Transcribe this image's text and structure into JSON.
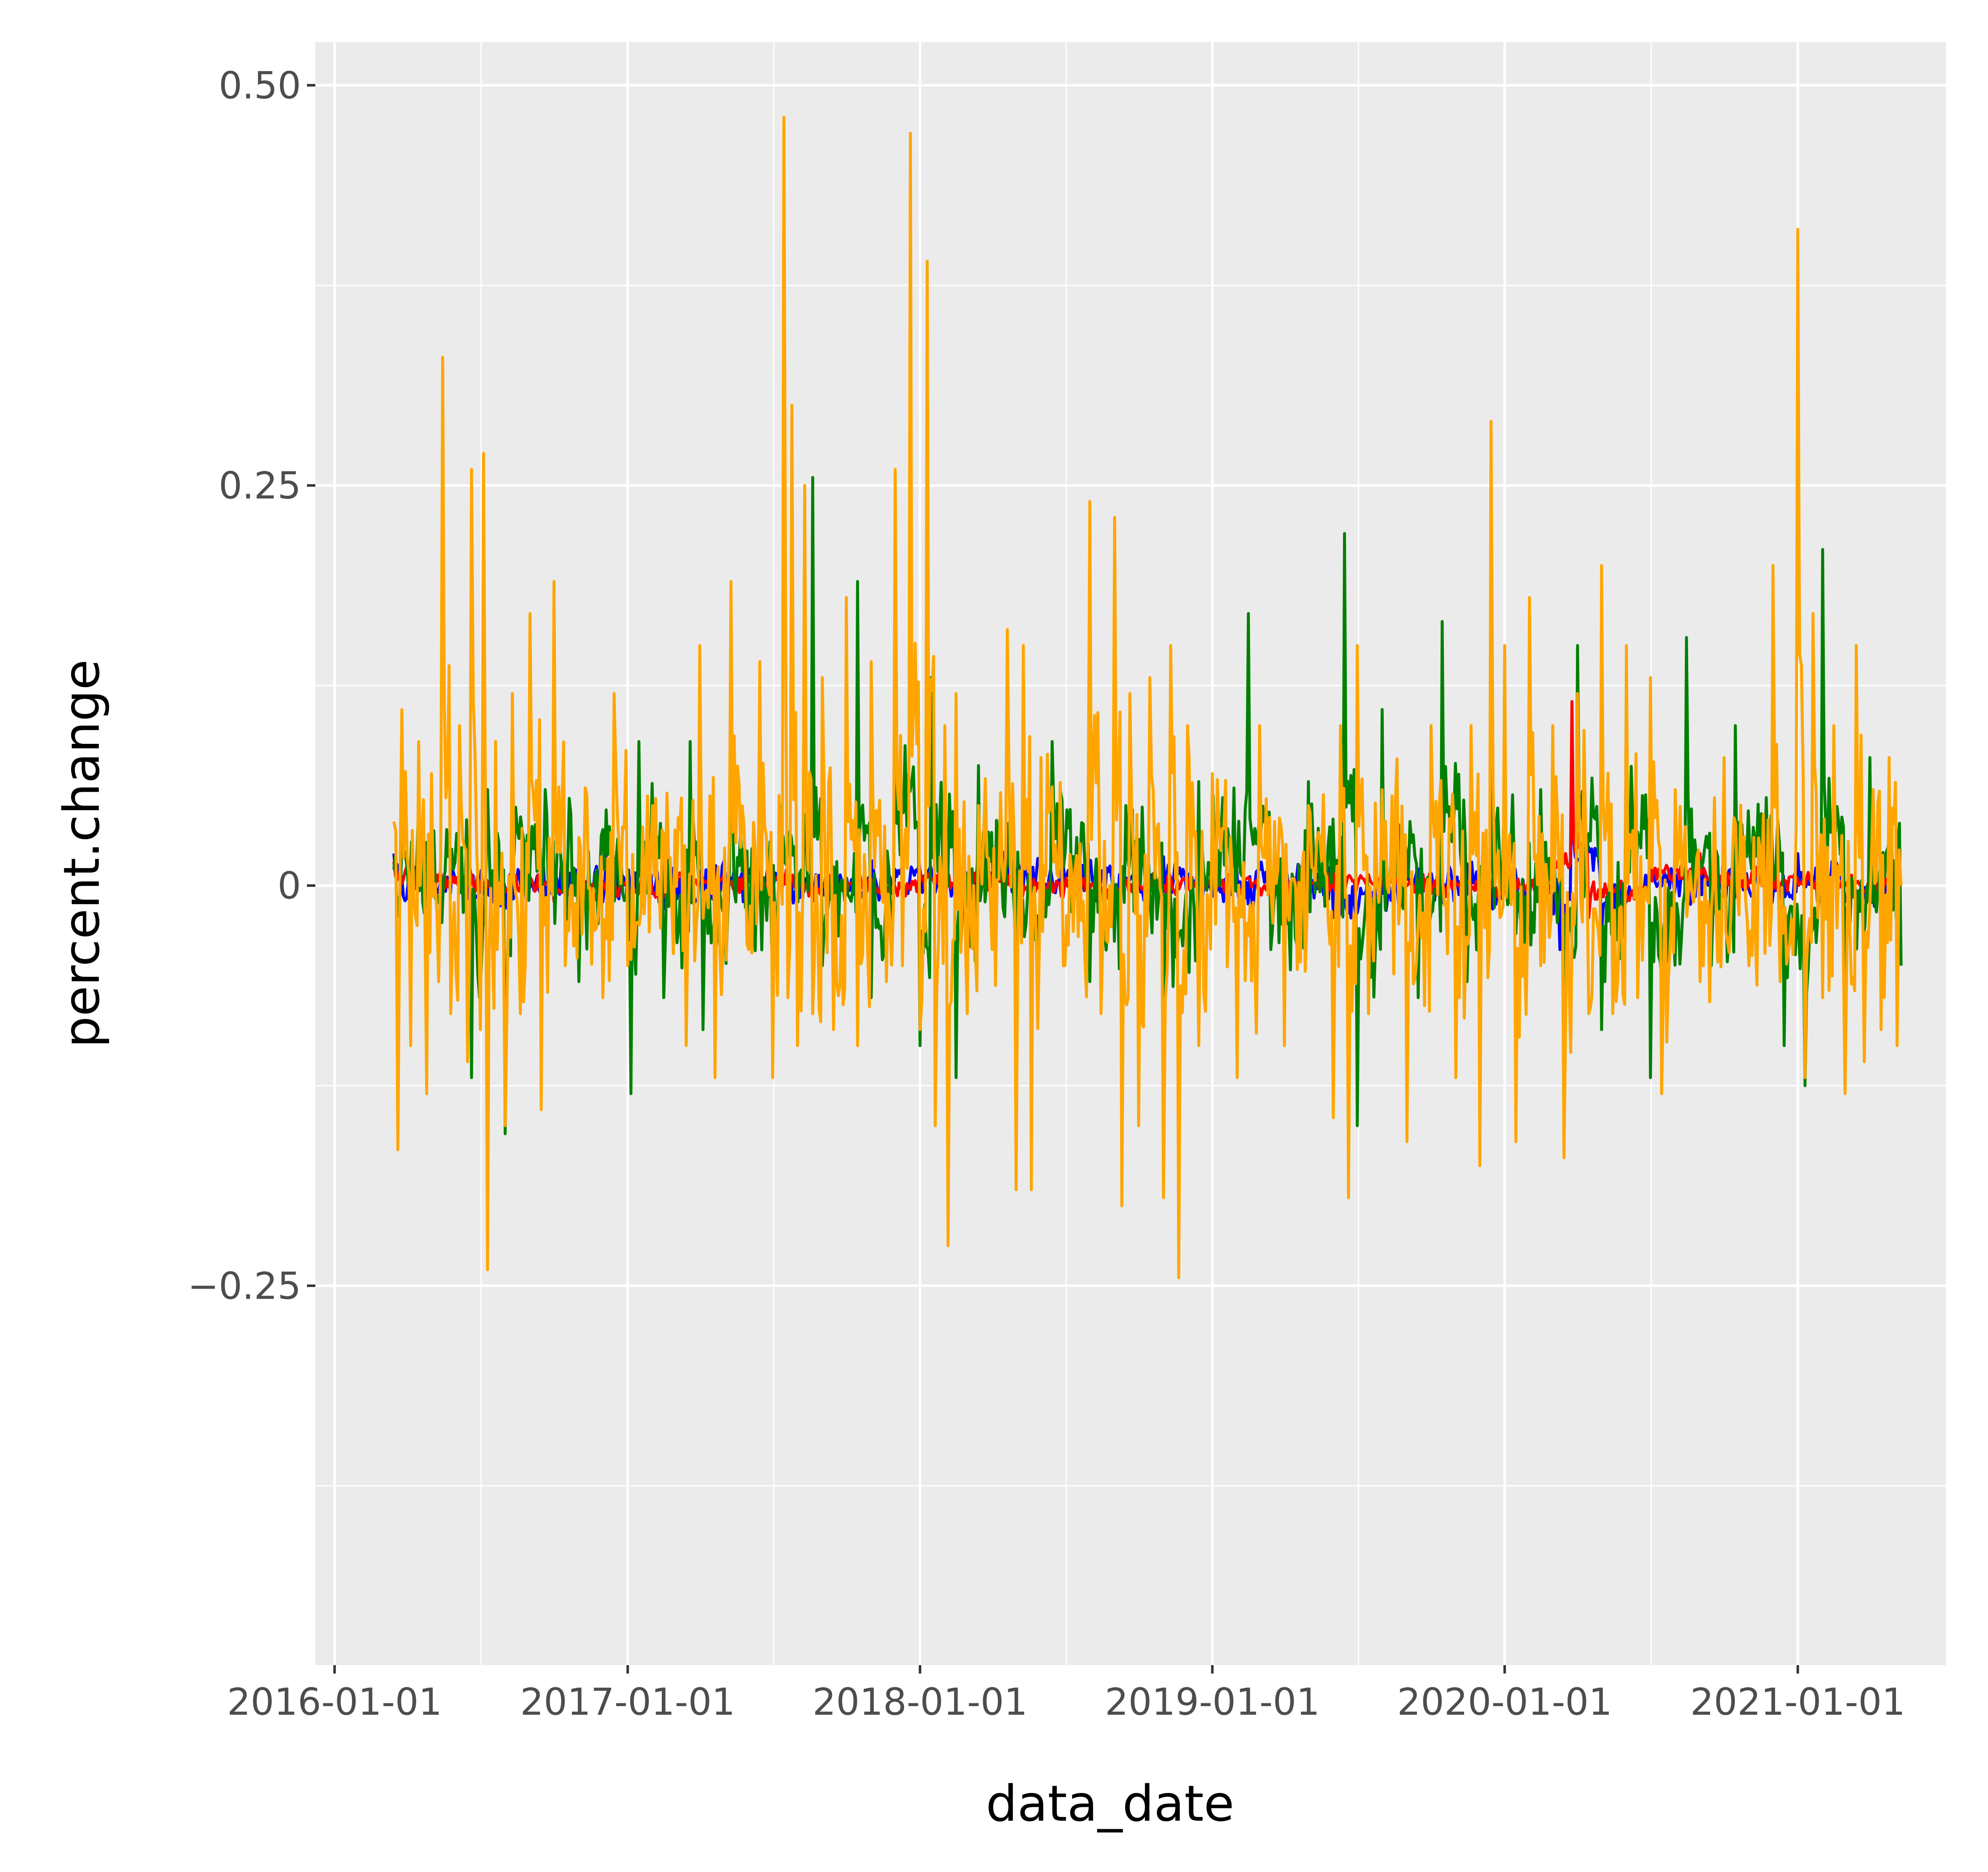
{
  "chart_data": {
    "type": "line",
    "title": "",
    "xlabel": "data_date",
    "ylabel": "percent.change",
    "x_ticks": [
      "2016-01-01",
      "2017-01-01",
      "2018-01-01",
      "2019-01-01",
      "2020-01-01",
      "2021-01-01"
    ],
    "y_ticks": [
      "0.50",
      "0.25",
      "0",
      "−0.25"
    ],
    "y_tick_values": [
      0.5,
      0.25,
      0,
      -0.25
    ],
    "xlim": [
      "2015-12-08",
      "2021-07-05"
    ],
    "ylim": [
      -0.487,
      0.527
    ],
    "grid": true,
    "legend": "none",
    "panel_background": "#ebebeb",
    "grid_color": "#ffffff",
    "series": [
      {
        "color": "#0000ff",
        "points": [
          [
            "2016-03-15",
            0.02
          ],
          [
            "2016-04-20",
            0.01
          ],
          [
            "2016-06-10",
            -0.01
          ],
          [
            "2016-08-15",
            0.0
          ],
          [
            "2016-11-01",
            0.01
          ],
          [
            "2017-02-01",
            -0.005
          ],
          [
            "2017-05-01",
            0.015
          ],
          [
            "2017-09-01",
            0.0
          ],
          [
            "2017-12-01",
            0.01
          ],
          [
            "2018-03-15",
            0.025
          ],
          [
            "2018-06-01",
            0.005
          ],
          [
            "2018-09-01",
            0.0
          ],
          [
            "2018-11-01",
            0.018
          ],
          [
            "2019-01-15",
            -0.01
          ],
          [
            "2019-03-01",
            0.01
          ],
          [
            "2019-06-01",
            -0.02
          ],
          [
            "2019-09-01",
            0.01
          ],
          [
            "2019-12-01",
            -0.005
          ],
          [
            "2020-03-10",
            -0.04
          ],
          [
            "2020-03-25",
            0.08
          ],
          [
            "2020-05-01",
            -0.03
          ],
          [
            "2020-07-01",
            0.01
          ],
          [
            "2020-10-01",
            0.0
          ],
          [
            "2021-01-01",
            0.02
          ],
          [
            "2021-03-01",
            -0.01
          ],
          [
            "2021-05-01",
            0.005
          ]
        ]
      },
      {
        "color": "#ff0000",
        "points": [
          [
            "2016-03-15",
            0.015
          ],
          [
            "2016-06-01",
            0.005
          ],
          [
            "2016-10-01",
            -0.01
          ],
          [
            "2017-03-01",
            0.01
          ],
          [
            "2017-08-01",
            -0.005
          ],
          [
            "2018-01-01",
            0.01
          ],
          [
            "2018-05-01",
            -0.01
          ],
          [
            "2018-10-01",
            0.005
          ],
          [
            "2019-02-01",
            0.0
          ],
          [
            "2019-06-01",
            0.01
          ],
          [
            "2019-10-01",
            -0.005
          ],
          [
            "2020-02-15",
            0.02
          ],
          [
            "2020-03-01",
            0.05
          ],
          [
            "2020-03-25",
            0.115
          ],
          [
            "2020-04-15",
            -0.02
          ],
          [
            "2020-07-01",
            0.03
          ],
          [
            "2020-09-01",
            0.02
          ],
          [
            "2020-12-01",
            0.01
          ],
          [
            "2021-03-01",
            0.0
          ],
          [
            "2021-05-01",
            0.005
          ]
        ]
      },
      {
        "color": "#008000",
        "points": [
          [
            "2016-03-15",
            0.01
          ],
          [
            "2016-04-20",
            -0.01
          ],
          [
            "2016-05-20",
            0.035
          ],
          [
            "2016-06-20",
            -0.12
          ],
          [
            "2016-07-10",
            0.06
          ],
          [
            "2016-08-01",
            -0.155
          ],
          [
            "2016-08-10",
            0.1
          ],
          [
            "2016-09-20",
            0.06
          ],
          [
            "2016-11-01",
            -0.06
          ],
          [
            "2016-12-01",
            0.035
          ],
          [
            "2017-01-05",
            -0.13
          ],
          [
            "2017-01-15",
            0.09
          ],
          [
            "2017-02-15",
            -0.07
          ],
          [
            "2017-03-20",
            0.09
          ],
          [
            "2017-04-05",
            -0.09
          ],
          [
            "2017-05-10",
            0.1
          ],
          [
            "2017-06-01",
            -0.04
          ],
          [
            "2017-07-10",
            0.05
          ],
          [
            "2017-08-20",
            0.255
          ],
          [
            "2017-09-01",
            -0.05
          ],
          [
            "2017-10-15",
            0.19
          ],
          [
            "2017-11-01",
            -0.07
          ],
          [
            "2017-12-01",
            0.225
          ],
          [
            "2018-01-01",
            -0.1
          ],
          [
            "2018-01-15",
            0.13
          ],
          [
            "2018-02-15",
            -0.12
          ],
          [
            "2018-03-15",
            0.075
          ],
          [
            "2018-05-01",
            -0.07
          ],
          [
            "2018-06-15",
            0.09
          ],
          [
            "2018-08-01",
            -0.06
          ],
          [
            "2018-09-15",
            0.05
          ],
          [
            "2018-11-01",
            -0.13
          ],
          [
            "2018-12-15",
            0.065
          ],
          [
            "2019-02-15",
            0.17
          ],
          [
            "2019-03-15",
            -0.04
          ],
          [
            "2019-05-01",
            0.065
          ],
          [
            "2019-06-15",
            0.22
          ],
          [
            "2019-07-01",
            -0.15
          ],
          [
            "2019-08-01",
            0.11
          ],
          [
            "2019-09-15",
            -0.07
          ],
          [
            "2019-10-15",
            0.165
          ],
          [
            "2019-11-15",
            -0.06
          ],
          [
            "2019-12-15",
            0.095
          ],
          [
            "2020-01-15",
            -0.03
          ],
          [
            "2020-02-15",
            0.06
          ],
          [
            "2020-03-15",
            -0.16
          ],
          [
            "2020-04-01",
            0.15
          ],
          [
            "2020-05-01",
            -0.09
          ],
          [
            "2020-06-01",
            0.13
          ],
          [
            "2020-07-01",
            -0.12
          ],
          [
            "2020-08-15",
            0.155
          ],
          [
            "2020-09-15",
            -0.05
          ],
          [
            "2020-10-15",
            0.1
          ],
          [
            "2020-12-15",
            -0.1
          ],
          [
            "2021-01-10",
            -0.125
          ],
          [
            "2021-02-01",
            0.21
          ],
          [
            "2021-03-01",
            -0.08
          ],
          [
            "2021-04-01",
            0.08
          ],
          [
            "2021-05-10",
            -0.05
          ]
        ]
      },
      {
        "color": "#ffa500",
        "points": [
          [
            "2016-03-15",
            0.04
          ],
          [
            "2016-03-20",
            -0.165
          ],
          [
            "2016-03-25",
            0.11
          ],
          [
            "2016-04-05",
            -0.1
          ],
          [
            "2016-04-15",
            0.09
          ],
          [
            "2016-04-25",
            -0.13
          ],
          [
            "2016-05-01",
            0.07
          ],
          [
            "2016-05-10",
            -0.06
          ],
          [
            "2016-05-15",
            0.33
          ],
          [
            "2016-05-25",
            -0.08
          ],
          [
            "2016-06-05",
            0.1
          ],
          [
            "2016-06-15",
            -0.11
          ],
          [
            "2016-06-20",
            0.26
          ],
          [
            "2016-07-01",
            -0.09
          ],
          [
            "2016-07-05",
            0.27
          ],
          [
            "2016-07-10",
            -0.24
          ],
          [
            "2016-07-20",
            0.09
          ],
          [
            "2016-08-01",
            -0.15
          ],
          [
            "2016-08-10",
            0.12
          ],
          [
            "2016-08-20",
            -0.08
          ],
          [
            "2016-09-01",
            0.17
          ],
          [
            "2016-09-15",
            -0.14
          ],
          [
            "2016-10-01",
            0.19
          ],
          [
            "2016-10-15",
            -0.05
          ],
          [
            "2016-11-01",
            0.03
          ],
          [
            "2016-12-01",
            -0.07
          ],
          [
            "2016-12-15",
            0.12
          ],
          [
            "2017-01-01",
            -0.05
          ],
          [
            "2017-02-01",
            0.05
          ],
          [
            "2017-03-15",
            -0.1
          ],
          [
            "2017-04-01",
            0.15
          ],
          [
            "2017-04-20",
            -0.12
          ],
          [
            "2017-05-10",
            0.19
          ],
          [
            "2017-06-01",
            -0.04
          ],
          [
            "2017-06-15",
            0.14
          ],
          [
            "2017-07-01",
            -0.12
          ],
          [
            "2017-07-15",
            0.48
          ],
          [
            "2017-07-20",
            -0.07
          ],
          [
            "2017-07-25",
            0.3
          ],
          [
            "2017-08-01",
            -0.1
          ],
          [
            "2017-08-10",
            0.25
          ],
          [
            "2017-08-20",
            -0.08
          ],
          [
            "2017-09-01",
            0.13
          ],
          [
            "2017-09-15",
            -0.09
          ],
          [
            "2017-10-01",
            0.18
          ],
          [
            "2017-10-15",
            -0.1
          ],
          [
            "2017-11-01",
            0.14
          ],
          [
            "2017-11-20",
            -0.06
          ],
          [
            "2017-12-01",
            0.26
          ],
          [
            "2017-12-10",
            -0.05
          ],
          [
            "2017-12-20",
            0.47
          ],
          [
            "2018-01-01",
            -0.09
          ],
          [
            "2018-01-10",
            0.39
          ],
          [
            "2018-01-20",
            -0.15
          ],
          [
            "2018-02-01",
            0.1
          ],
          [
            "2018-02-05",
            -0.225
          ],
          [
            "2018-02-15",
            0.12
          ],
          [
            "2018-03-01",
            -0.08
          ],
          [
            "2018-03-15",
            0.05
          ],
          [
            "2018-04-01",
            -0.04
          ],
          [
            "2018-04-20",
            0.16
          ],
          [
            "2018-05-01",
            -0.19
          ],
          [
            "2018-05-10",
            0.15
          ],
          [
            "2018-05-20",
            -0.19
          ],
          [
            "2018-06-01",
            0.08
          ],
          [
            "2018-07-01",
            -0.05
          ],
          [
            "2018-08-01",
            0.24
          ],
          [
            "2018-08-15",
            -0.08
          ],
          [
            "2018-09-01",
            0.23
          ],
          [
            "2018-09-10",
            -0.2
          ],
          [
            "2018-09-20",
            0.12
          ],
          [
            "2018-10-01",
            -0.15
          ],
          [
            "2018-10-15",
            0.13
          ],
          [
            "2018-11-01",
            -0.195
          ],
          [
            "2018-11-10",
            0.15
          ],
          [
            "2018-11-20",
            -0.245
          ],
          [
            "2018-12-01",
            0.1
          ],
          [
            "2018-12-15",
            -0.1
          ],
          [
            "2019-01-01",
            0.07
          ],
          [
            "2019-02-01",
            -0.12
          ],
          [
            "2019-03-01",
            0.1
          ],
          [
            "2019-04-01",
            -0.1
          ],
          [
            "2019-05-01",
            0.05
          ],
          [
            "2019-06-01",
            -0.145
          ],
          [
            "2019-06-10",
            0.1
          ],
          [
            "2019-06-20",
            -0.195
          ],
          [
            "2019-07-01",
            0.15
          ],
          [
            "2019-07-15",
            -0.08
          ],
          [
            "2019-08-01",
            0.06
          ],
          [
            "2019-09-01",
            -0.16
          ],
          [
            "2019-10-01",
            0.1
          ],
          [
            "2019-11-01",
            -0.12
          ],
          [
            "2019-11-20",
            0.1
          ],
          [
            "2019-12-01",
            -0.175
          ],
          [
            "2019-12-15",
            0.29
          ],
          [
            "2019-12-20",
            0.0
          ],
          [
            "2020-01-01",
            0.15
          ],
          [
            "2020-01-15",
            -0.16
          ],
          [
            "2020-02-01",
            0.18
          ],
          [
            "2020-02-15",
            -0.05
          ],
          [
            "2020-03-01",
            0.1
          ],
          [
            "2020-03-15",
            -0.17
          ],
          [
            "2020-04-01",
            0.12
          ],
          [
            "2020-04-15",
            -0.08
          ],
          [
            "2020-05-01",
            0.2
          ],
          [
            "2020-05-15",
            -0.08
          ],
          [
            "2020-06-01",
            0.15
          ],
          [
            "2020-06-15",
            -0.07
          ],
          [
            "2020-07-01",
            0.13
          ],
          [
            "2020-07-15",
            -0.13
          ],
          [
            "2020-08-01",
            0.06
          ],
          [
            "2020-09-01",
            -0.06
          ],
          [
            "2020-10-01",
            0.08
          ],
          [
            "2020-11-01",
            -0.05
          ],
          [
            "2020-12-01",
            0.2
          ],
          [
            "2020-12-10",
            -0.06
          ],
          [
            "2021-01-01",
            0.41
          ],
          [
            "2021-01-10",
            -0.12
          ],
          [
            "2021-01-20",
            0.17
          ],
          [
            "2021-02-01",
            -0.07
          ],
          [
            "2021-02-15",
            0.1
          ],
          [
            "2021-03-01",
            -0.13
          ],
          [
            "2021-03-15",
            0.15
          ],
          [
            "2021-03-25",
            -0.11
          ],
          [
            "2021-04-05",
            0.06
          ],
          [
            "2021-04-15",
            -0.09
          ],
          [
            "2021-04-25",
            0.08
          ],
          [
            "2021-05-05",
            -0.1
          ],
          [
            "2021-05-10",
            0.0
          ]
        ]
      }
    ]
  }
}
